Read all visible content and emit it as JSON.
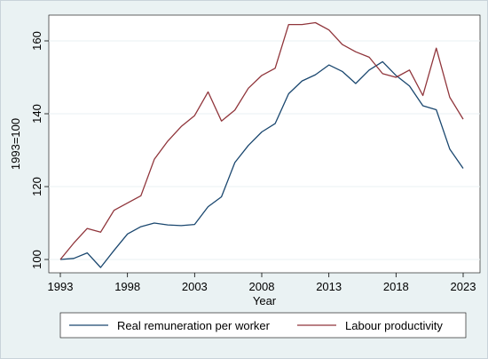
{
  "chart_data": {
    "type": "line",
    "title": "",
    "xlabel": "Year",
    "ylabel": "1993=100",
    "xlim": [
      1993,
      2023
    ],
    "ylim": [
      98,
      166
    ],
    "x_ticks": [
      1993,
      1998,
      2003,
      2008,
      2013,
      2018,
      2023
    ],
    "y_ticks": [
      100,
      120,
      140,
      160
    ],
    "grid": true,
    "legend_position": "bottom",
    "x": [
      1993,
      1994,
      1995,
      1996,
      1997,
      1998,
      1999,
      2000,
      2001,
      2002,
      2003,
      2004,
      2005,
      2006,
      2007,
      2008,
      2009,
      2010,
      2011,
      2012,
      2013,
      2014,
      2015,
      2016,
      2017,
      2018,
      2019,
      2020,
      2021,
      2022,
      2023
    ],
    "series": [
      {
        "name": "Real remuneration per worker",
        "color": "#1a476f",
        "values": [
          100,
          100.3,
          101.8,
          97.8,
          102.5,
          107.0,
          109.0,
          110.0,
          109.5,
          109.3,
          109.6,
          114.5,
          117.2,
          126.6,
          131.3,
          135.0,
          137.3,
          145.5,
          149.0,
          150.7,
          153.4,
          151.6,
          148.3,
          152.0,
          154.3,
          150.5,
          147.6,
          142.2,
          141.1,
          130.3,
          125.0
        ]
      },
      {
        "name": "Labour productivity",
        "color": "#90353b",
        "values": [
          100,
          104.5,
          108.5,
          107.5,
          113.5,
          115.5,
          117.5,
          127.5,
          132.5,
          136.5,
          139.5,
          146.0,
          138.0,
          141.0,
          147.0,
          150.5,
          152.5,
          164.5,
          164.5,
          165.0,
          163.0,
          159.0,
          157.0,
          155.5,
          151.0,
          150.0,
          152.0,
          145.0,
          158.0,
          144.5,
          138.5
        ]
      }
    ]
  }
}
